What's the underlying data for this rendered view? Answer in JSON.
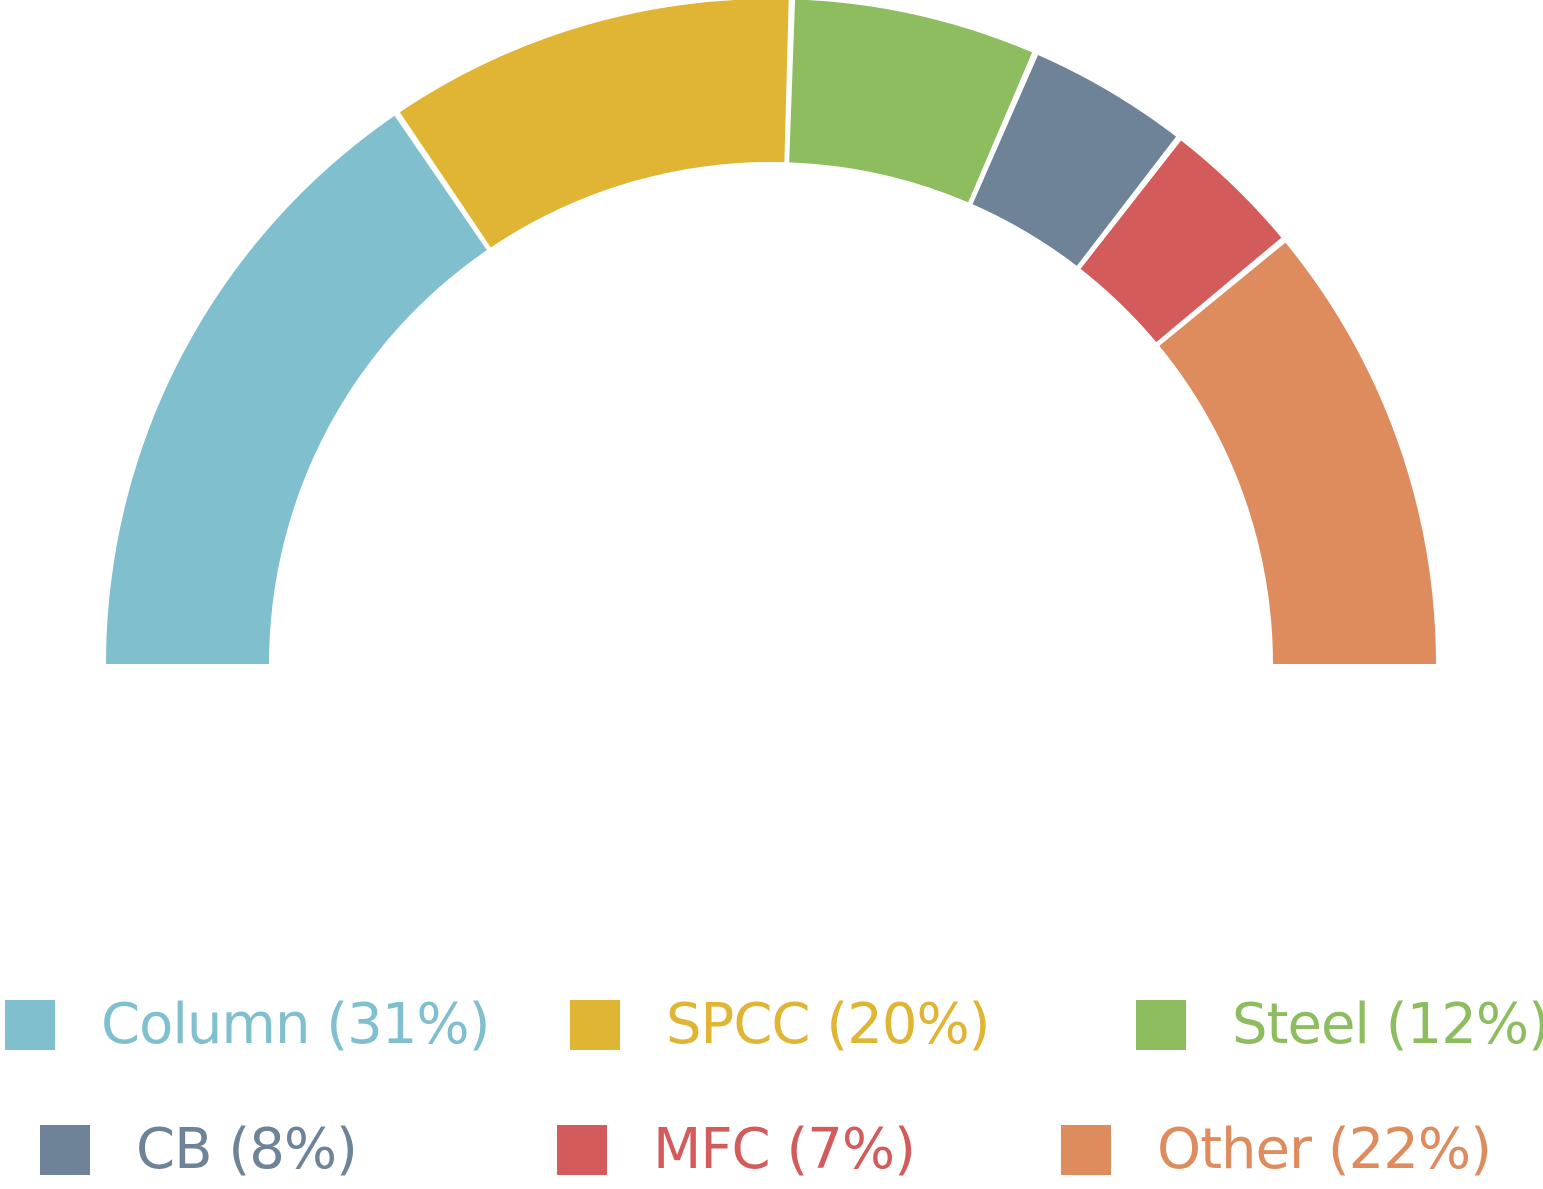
{
  "chart_data": {
    "type": "pie",
    "subtype": "half-donut",
    "slices": [
      {
        "label": "Column",
        "percent_label": "(31%)",
        "value": 31,
        "color": "#80C0CE"
      },
      {
        "label": "SPCC",
        "percent_label": "(20%)",
        "value": 20,
        "color": "#DFB533"
      },
      {
        "label": "Steel",
        "percent_label": "(12%)",
        "value": 12,
        "color": "#8DBD5E"
      },
      {
        "label": "CB",
        "percent_label": "(8%)",
        "value": 8,
        "color": "#6E8398"
      },
      {
        "label": "MFC",
        "percent_label": "(7%)",
        "value": 7,
        "color": "#D45B5B"
      },
      {
        "label": "Other",
        "percent_label": "(22%)",
        "value": 22,
        "color": "#DE8B5E"
      }
    ],
    "legend_position": "bottom"
  }
}
